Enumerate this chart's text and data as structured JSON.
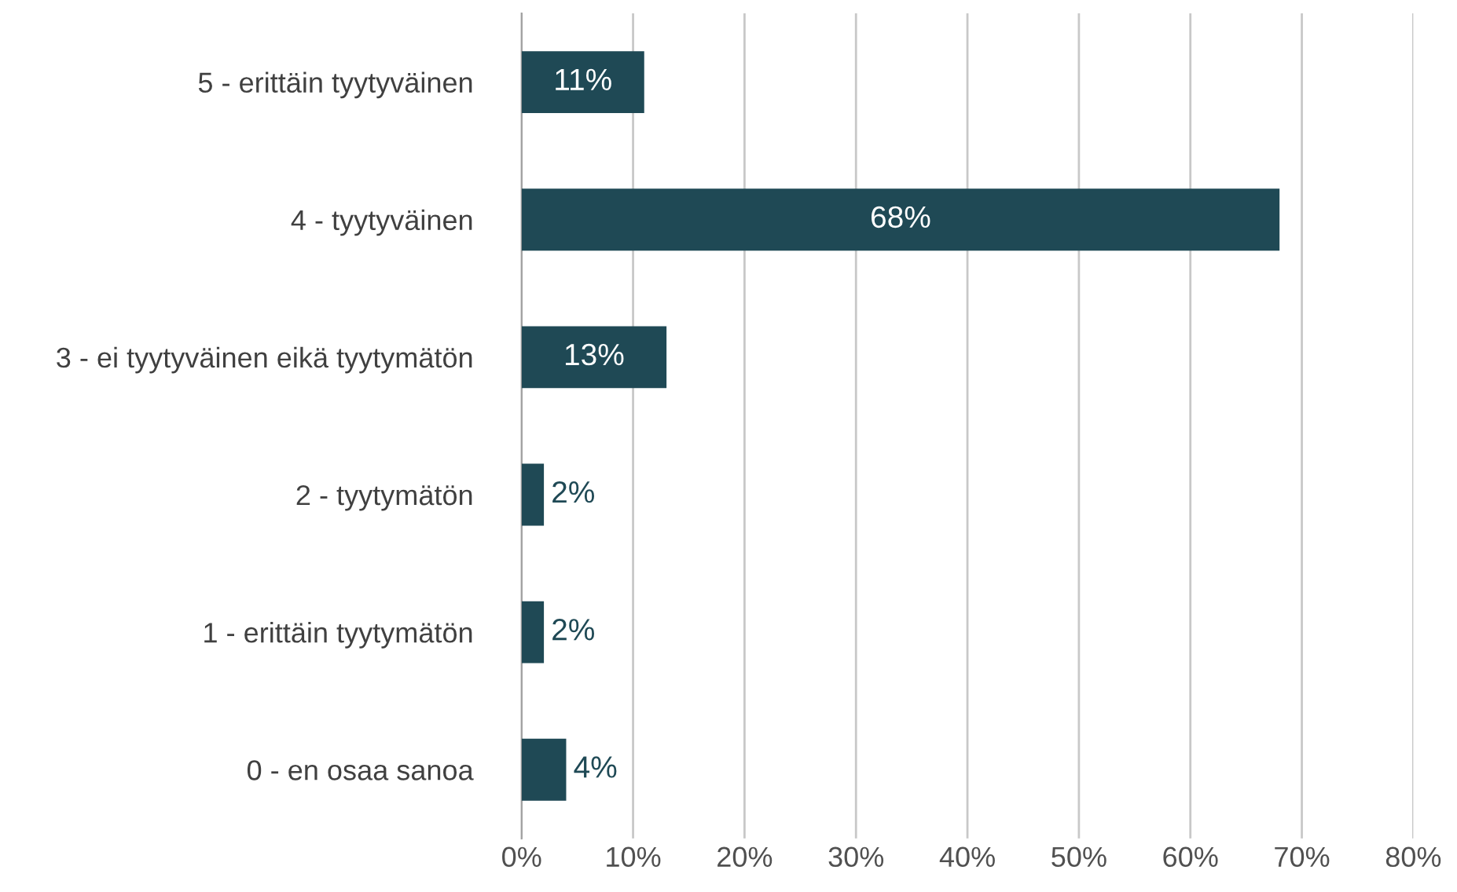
{
  "chart_data": {
    "type": "bar",
    "orientation": "horizontal",
    "categories": [
      "5 - erittäin tyytyväinen",
      "4 - tyytyväinen",
      "3 - ei tyytyväinen eikä tyytymätön",
      "2 - tyytymätön",
      "1 - erittäin tyytymätön",
      "0 - en osaa sanoa"
    ],
    "values": [
      11,
      68,
      13,
      2,
      2,
      4
    ],
    "color": "#1f4955",
    "value_labels": [
      "11%",
      "68%",
      "13%",
      "2%",
      "2%",
      "4%"
    ],
    "xlim": [
      0,
      80
    ],
    "xticks": [
      {
        "value": 0,
        "label": "0%"
      },
      {
        "value": 10,
        "label": "10%"
      },
      {
        "value": 20,
        "label": "20%"
      },
      {
        "value": 30,
        "label": "30%"
      },
      {
        "value": 40,
        "label": "40%"
      },
      {
        "value": 50,
        "label": "50%"
      },
      {
        "value": 60,
        "label": "60%"
      },
      {
        "value": 70,
        "label": "70%"
      },
      {
        "value": 80,
        "label": "80%"
      }
    ],
    "grid": "x"
  }
}
